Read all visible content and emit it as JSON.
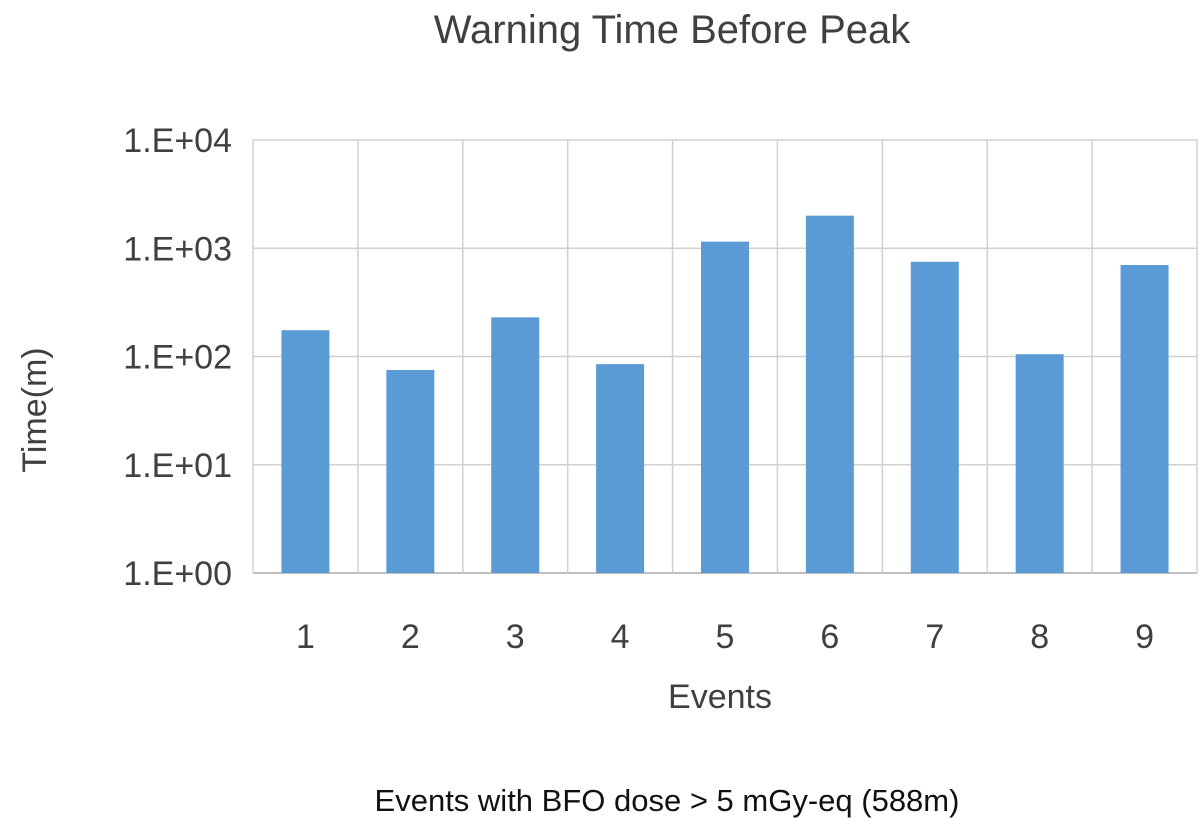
{
  "chart_data": {
    "type": "bar",
    "title": "Warning Time Before Peak",
    "xlabel": "Events",
    "ylabel": "Time(m)",
    "caption": "Events with BFO dose > 5 mGy-eq (588m)",
    "y_scale": "log",
    "ylim": [
      1,
      10000
    ],
    "y_ticks": [
      {
        "value": 1,
        "label": "1.E+00"
      },
      {
        "value": 10,
        "label": "1.E+01"
      },
      {
        "value": 100,
        "label": "1.E+02"
      },
      {
        "value": 1000,
        "label": "1.E+03"
      },
      {
        "value": 10000,
        "label": "1.E+04"
      }
    ],
    "categories": [
      "1",
      "2",
      "3",
      "4",
      "5",
      "6",
      "7",
      "8",
      "9"
    ],
    "values": [
      175,
      75,
      230,
      85,
      1150,
      2000,
      750,
      105,
      700
    ],
    "bar_color": "#5b9bd5",
    "grid": true,
    "legend": "none"
  }
}
